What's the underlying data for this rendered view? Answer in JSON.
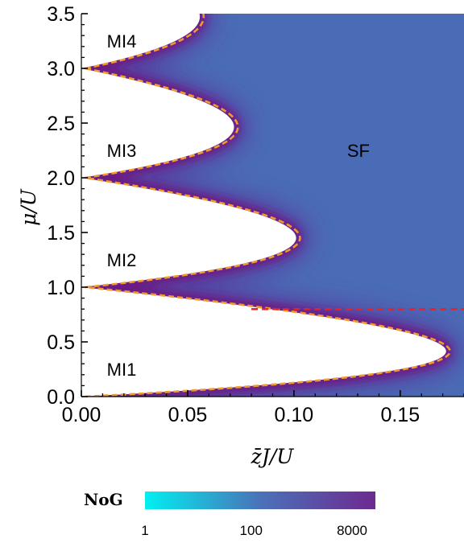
{
  "chart_data": {
    "type": "heatmap",
    "xlabel": "z̄J/U",
    "ylabel": "μ/U",
    "xlim": [
      0,
      0.18
    ],
    "ylim": [
      0,
      3.5
    ],
    "x_ticks": [
      "0.00",
      "0.05",
      "0.10",
      "0.15"
    ],
    "x_tick_values": [
      0,
      0.05,
      0.1,
      0.15
    ],
    "y_ticks": [
      "0.0",
      "0.5",
      "1.0",
      "1.5",
      "2.0",
      "2.5",
      "3.0",
      "3.5"
    ],
    "y_tick_values": [
      0,
      0.5,
      1.0,
      1.5,
      2.0,
      2.5,
      3.0,
      3.5
    ],
    "regions": [
      {
        "label": "MI1",
        "x": 0.012,
        "y": 0.25
      },
      {
        "label": "MI2",
        "x": 0.012,
        "y": 1.25
      },
      {
        "label": "MI3",
        "x": 0.012,
        "y": 2.25
      },
      {
        "label": "MI4",
        "x": 0.012,
        "y": 3.25
      },
      {
        "label": "SF",
        "x": 0.125,
        "y": 2.25
      }
    ],
    "lobes": [
      {
        "n": 1,
        "mu_range": [
          0,
          1
        ],
        "tip": [
          0.1716,
          0.414
        ]
      },
      {
        "n": 2,
        "mu_range": [
          1,
          2
        ],
        "tip": [
          0.101,
          1.449
        ]
      },
      {
        "n": 3,
        "mu_range": [
          2,
          3
        ],
        "tip": [
          0.0718,
          2.464
        ]
      },
      {
        "n": 4,
        "mu_range": [
          3,
          4
        ],
        "tip": [
          0.0557,
          3.472
        ]
      }
    ],
    "horizontal_line": {
      "y": 0.8,
      "color": "#e8202a",
      "style": "dashed"
    },
    "boundary_line": {
      "color": "#f29a2e",
      "style": "dashed"
    },
    "colorbar": {
      "title": "NoG",
      "ticks": [
        "1",
        "100",
        "8000"
      ],
      "scale": "log",
      "colors": [
        "#00f0f0",
        "#4a72b8",
        "#6d2a90"
      ]
    },
    "colors": {
      "background": "#4a6cb6",
      "near_boundary": "#6b1b86"
    }
  }
}
